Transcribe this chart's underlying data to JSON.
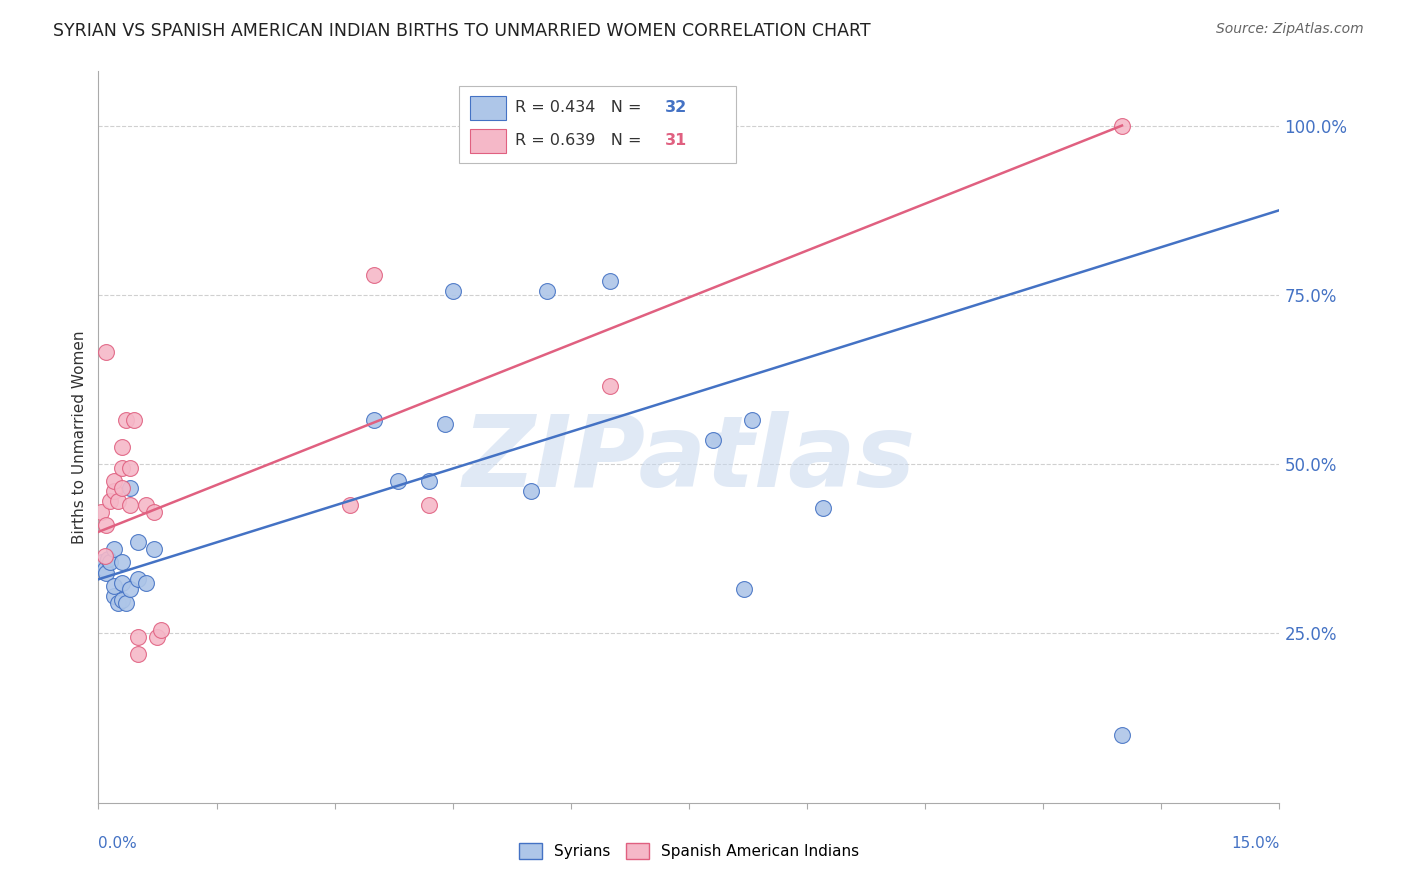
{
  "title": "SYRIAN VS SPANISH AMERICAN INDIAN BIRTHS TO UNMARRIED WOMEN CORRELATION CHART",
  "source": "Source: ZipAtlas.com",
  "ylabel": "Births to Unmarried Women",
  "ytick_values": [
    0.25,
    0.5,
    0.75,
    1.0
  ],
  "xmin": 0.0,
  "xmax": 0.15,
  "ymin": 0.0,
  "ymax": 1.08,
  "syrians_color": "#aec6e8",
  "spanish_color": "#f5b8c8",
  "line_blue": "#4472c4",
  "line_pink": "#e06080",
  "syrians_x": [
    0.0005,
    0.0008,
    0.001,
    0.0012,
    0.0015,
    0.002,
    0.002,
    0.002,
    0.0025,
    0.003,
    0.003,
    0.003,
    0.0035,
    0.004,
    0.004,
    0.005,
    0.005,
    0.006,
    0.007,
    0.035,
    0.038,
    0.042,
    0.044,
    0.045,
    0.055,
    0.057,
    0.065,
    0.078,
    0.082,
    0.083,
    0.092,
    0.13
  ],
  "syrians_y": [
    0.355,
    0.345,
    0.34,
    0.36,
    0.355,
    0.305,
    0.32,
    0.375,
    0.295,
    0.3,
    0.325,
    0.355,
    0.295,
    0.315,
    0.465,
    0.33,
    0.385,
    0.325,
    0.375,
    0.565,
    0.475,
    0.475,
    0.56,
    0.755,
    0.46,
    0.755,
    0.77,
    0.535,
    0.315,
    0.565,
    0.435,
    0.1
  ],
  "spanish_x": [
    0.0003,
    0.0008,
    0.001,
    0.001,
    0.0015,
    0.002,
    0.002,
    0.0025,
    0.003,
    0.003,
    0.003,
    0.0035,
    0.004,
    0.004,
    0.0045,
    0.005,
    0.005,
    0.006,
    0.007,
    0.0075,
    0.008,
    0.032,
    0.035,
    0.042,
    0.065,
    0.13
  ],
  "spanish_y": [
    0.43,
    0.365,
    0.41,
    0.665,
    0.445,
    0.46,
    0.475,
    0.445,
    0.465,
    0.495,
    0.525,
    0.565,
    0.44,
    0.495,
    0.565,
    0.22,
    0.245,
    0.44,
    0.43,
    0.245,
    0.255,
    0.44,
    0.78,
    0.44,
    0.615,
    1.0
  ],
  "blue_line_x": [
    0.0,
    0.15
  ],
  "blue_line_y": [
    0.33,
    0.875
  ],
  "pink_line_x": [
    0.0,
    0.13
  ],
  "pink_line_y": [
    0.4,
    1.0
  ],
  "watermark_text": "ZIPatlas",
  "background_color": "#ffffff",
  "grid_color": "#d0d0d0"
}
